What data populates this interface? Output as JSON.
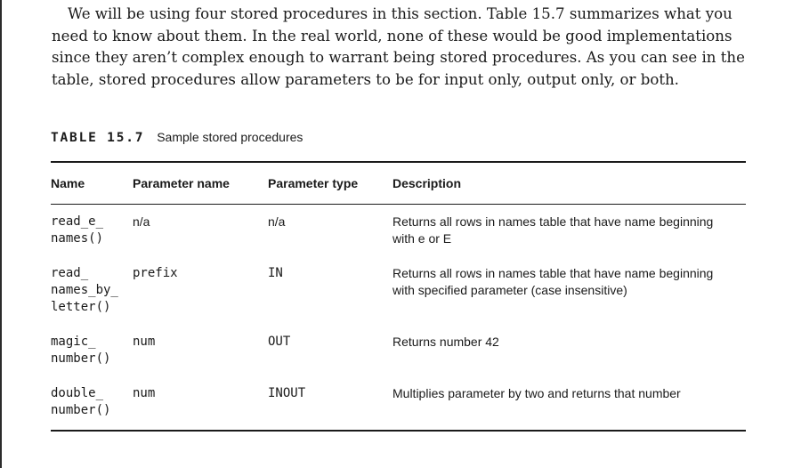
{
  "paragraph": "We will be using four stored procedures in this section. Table 15.7 summarizes what you need to know about them. In the real world, none of these would be good implementations since they aren’t complex enough to warrant being stored procedures. As you can see in the table, stored procedures allow parameters to be for input only, output only, or both.",
  "caption": {
    "number": "TABLE 15.7",
    "title": "Sample stored procedures"
  },
  "table": {
    "headers": [
      "Name",
      "Parameter name",
      "Parameter type",
      "Description"
    ],
    "rows": [
      {
        "name": "read_e_\nnames()",
        "param_name": "n/a",
        "param_type": "n/a",
        "description": "Returns all rows in names table that have name beginning with e or E"
      },
      {
        "name": "read_\nnames_by_\nletter()",
        "param_name": "prefix",
        "param_type": "IN",
        "description": "Returns all rows in names table that have name beginning with specified parameter (case insensitive)"
      },
      {
        "name": "magic_\nnumber()",
        "param_name": "num",
        "param_type": "OUT",
        "description": "Returns number 42"
      },
      {
        "name": "double_\nnumber()",
        "param_name": "num",
        "param_type": "INOUT",
        "description": "Multiplies parameter by two and returns that number"
      }
    ]
  }
}
